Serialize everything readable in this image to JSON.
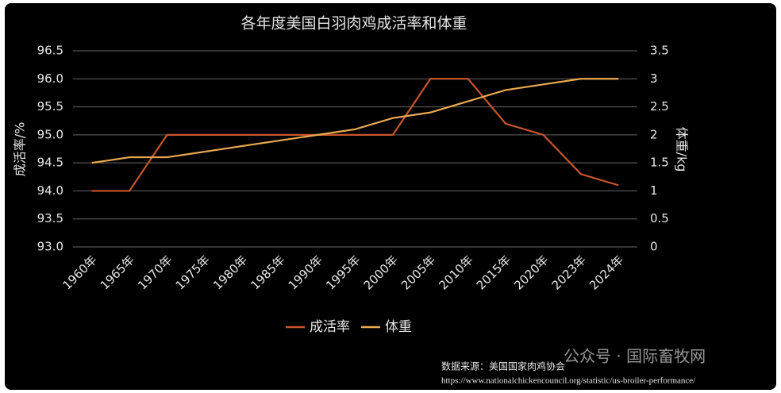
{
  "chart_data": {
    "type": "line",
    "title": "各年度美国白羽肉鸡成活率和体重",
    "y_label": "成活率/%",
    "y2_label": "体重/kg",
    "categories": [
      "1960年",
      "1965年",
      "1970年",
      "1975年",
      "1980年",
      "1985年",
      "1990年",
      "1995年",
      "2000年",
      "2005年",
      "2010年",
      "2015年",
      "2020年",
      "2023年",
      "2024年"
    ],
    "series": [
      {
        "name": "成活率",
        "color": "#c8552c",
        "values": [
          94.0,
          94.0,
          95.0,
          95.0,
          95.0,
          95.0,
          95.0,
          95.0,
          95.0,
          96.0,
          96.0,
          95.2,
          95.0,
          94.3,
          94.1
        ]
      },
      {
        "name": "体重",
        "color": "#e9a94f",
        "axis": "y2",
        "values": [
          1.5,
          1.6,
          1.6,
          1.7,
          1.8,
          1.9,
          2.0,
          2.1,
          2.3,
          2.4,
          2.6,
          2.8,
          2.9,
          3.0,
          3.0
        ]
      }
    ],
    "ylim": [
      93,
      96.5
    ],
    "yticks": [
      {
        "value": 93,
        "label": "93.0"
      },
      93.5,
      {
        "value": 94,
        "label": "94.0"
      },
      94.5,
      {
        "value": 95,
        "label": "95.0"
      },
      95.5,
      {
        "value": 96,
        "label": "96.0"
      },
      96.5
    ],
    "y2lim": [
      0,
      3.5
    ],
    "y2ticks": [
      0,
      0.5,
      1,
      1.5,
      2,
      2.5,
      3,
      3.5
    ],
    "grid": true,
    "legend": "bottom",
    "source": "数据来源：美国国家肉鸡协会",
    "source_url": "https://www.nationalchickencouncil.org/statistic/us-broiler-performance/",
    "watermark": "公众号 · 国际畜牧网"
  }
}
